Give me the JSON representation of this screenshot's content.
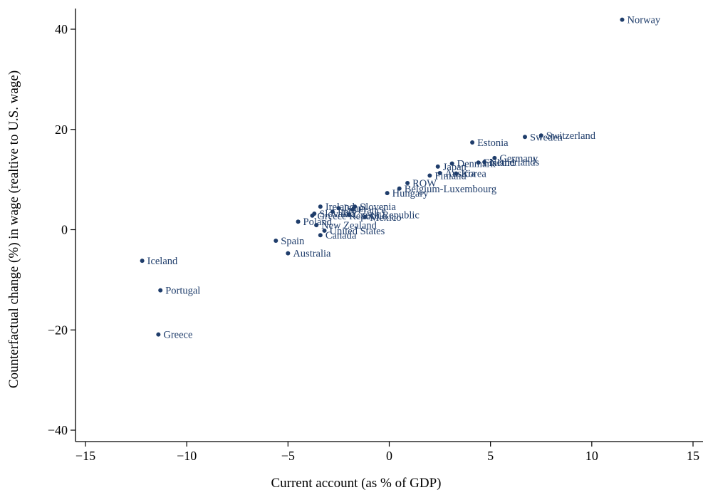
{
  "chart_data": {
    "type": "scatter",
    "title": "",
    "xlabel": "Current account (as % of GDP)",
    "ylabel": "Counterfactual change (%) in wage (realtive to U.S. wage)",
    "xlim": [
      -15,
      15
    ],
    "ylim": [
      -40,
      40
    ],
    "xticks": [
      -15,
      -10,
      -5,
      0,
      5,
      10,
      15
    ],
    "yticks": [
      -40,
      -20,
      0,
      20,
      40
    ],
    "xtick_labels": [
      "−15",
      "−10",
      "−5",
      "0",
      "5",
      "10",
      "15"
    ],
    "ytick_labels": [
      "−40",
      "−20",
      "0",
      "20",
      "40"
    ],
    "grid": false,
    "marker_color": "#1f3d6b",
    "points": [
      {
        "label": "Norway",
        "x": 11.5,
        "y": 41.9
      },
      {
        "label": "Switzerland",
        "x": 7.5,
        "y": 18.8
      },
      {
        "label": "Sweden",
        "x": 6.7,
        "y": 18.5
      },
      {
        "label": "Estonia",
        "x": 4.1,
        "y": 17.4
      },
      {
        "label": "Germany",
        "x": 5.2,
        "y": 14.3
      },
      {
        "label": "Netherlands",
        "x": 4.7,
        "y": 13.5
      },
      {
        "label": "Finland",
        "x": 4.4,
        "y": 13.4
      },
      {
        "label": "Denmark",
        "x": 3.1,
        "y": 13.2
      },
      {
        "label": "Japan",
        "x": 2.4,
        "y": 12.6
      },
      {
        "label": "Austria",
        "x": 2.5,
        "y": 11.3
      },
      {
        "label": "Korea",
        "x": 3.3,
        "y": 11.2
      },
      {
        "label": "Finland",
        "x": 2.0,
        "y": 10.8
      },
      {
        "label": "ROW",
        "x": 0.9,
        "y": 9.3
      },
      {
        "label": "Belgium-Luxembourg",
        "x": 0.5,
        "y": 8.2
      },
      {
        "label": "Hungary",
        "x": -0.1,
        "y": 7.3
      },
      {
        "label": "Ireland",
        "x": -3.4,
        "y": 4.6
      },
      {
        "label": "Slovenia",
        "x": -1.7,
        "y": 4.6
      },
      {
        "label": "Israel",
        "x": -2.5,
        "y": 4.3
      },
      {
        "label": "France",
        "x": -1.8,
        "y": 4.0
      },
      {
        "label": "Italy",
        "x": -2.8,
        "y": 3.6
      },
      {
        "label": "Czech Republic",
        "x": -2.0,
        "y": 3.0
      },
      {
        "label": "Slovakia",
        "x": -3.7,
        "y": 3.2
      },
      {
        "label": "Greece Republic",
        "x": -3.8,
        "y": 2.8
      },
      {
        "label": "Mexico",
        "x": -1.2,
        "y": 2.5
      },
      {
        "label": "Poland",
        "x": -4.5,
        "y": 1.6
      },
      {
        "label": "New Zealand",
        "x": -3.6,
        "y": 0.9
      },
      {
        "label": "United States",
        "x": -3.2,
        "y": -0.2
      },
      {
        "label": "Canada",
        "x": -3.4,
        "y": -1.1
      },
      {
        "label": "Spain",
        "x": -5.6,
        "y": -2.2
      },
      {
        "label": "Australia",
        "x": -5.0,
        "y": -4.7
      },
      {
        "label": "Iceland",
        "x": -12.2,
        "y": -6.2
      },
      {
        "label": "Portugal",
        "x": -11.3,
        "y": -12.1
      },
      {
        "label": "Greece",
        "x": -11.4,
        "y": -20.9
      }
    ]
  }
}
